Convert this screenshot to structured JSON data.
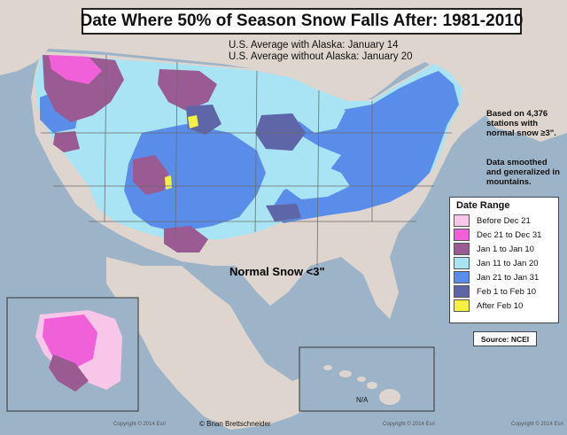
{
  "title": "Date Where 50% of Season Snow Falls After: 1981-2010",
  "averages": {
    "with_alaska": "U.S. Average with Alaska: January 14",
    "without_alaska": "U.S. Average without Alaska: January 20"
  },
  "notes": {
    "stations": "Based on 4,376 stations with normal snow ≥3\".",
    "smoothing": "Data smoothed and generalized in mountains."
  },
  "legend": {
    "title": "Date Range",
    "items": [
      {
        "label": "Before Dec 21",
        "color": "#f8c6e8"
      },
      {
        "label": "Dec 21 to Dec 31",
        "color": "#f060d8"
      },
      {
        "label": "Jan 1 to Jan 10",
        "color": "#9a5a92"
      },
      {
        "label": "Jan 11 to Jan 20",
        "color": "#a8e4f4"
      },
      {
        "label": "Jan 21 to Jan 31",
        "color": "#5a8cea"
      },
      {
        "label": "Feb 1 to Feb 10",
        "color": "#5e66a8"
      },
      {
        "label": "After Feb 10",
        "color": "#f6f040"
      }
    ]
  },
  "source": "Source: NCEI",
  "normal_snow_label": "Normal Snow <3\"",
  "credit": "© Brian Brettschneider",
  "hawaii_label": "N/A",
  "copyright": "Copyright © 2014 Esri",
  "colors": {
    "ocean": "#9db3c8",
    "land": "#ddd5ce",
    "state_border": "#6d6d6d"
  }
}
